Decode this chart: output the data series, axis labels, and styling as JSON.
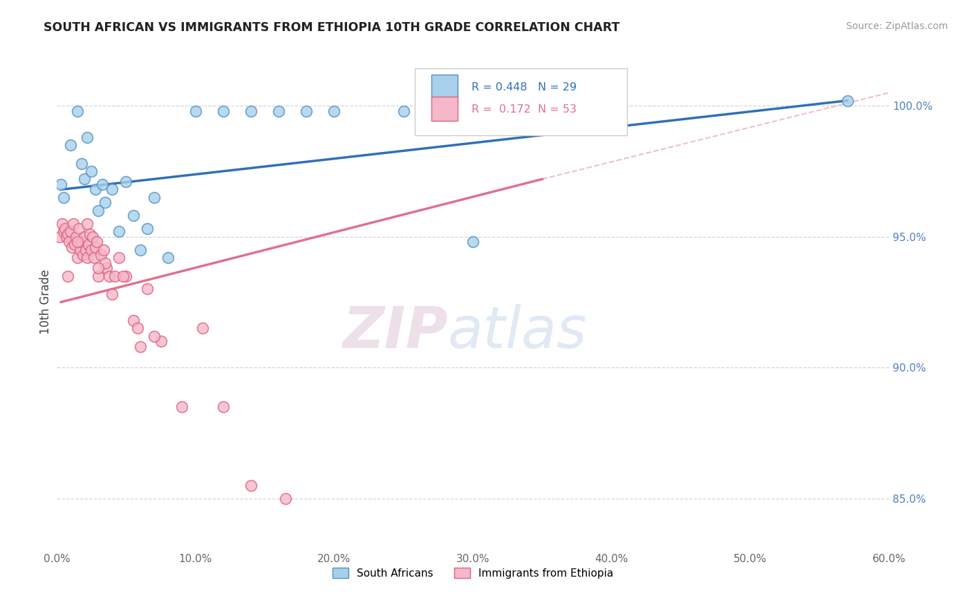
{
  "title": "SOUTH AFRICAN VS IMMIGRANTS FROM ETHIOPIA 10TH GRADE CORRELATION CHART",
  "source": "Source: ZipAtlas.com",
  "ylabel": "10th Grade",
  "x_tick_labels": [
    "0.0%",
    "10.0%",
    "20.0%",
    "30.0%",
    "40.0%",
    "50.0%",
    "60.0%"
  ],
  "x_tick_vals": [
    0.0,
    10.0,
    20.0,
    30.0,
    40.0,
    50.0,
    60.0
  ],
  "y_tick_labels": [
    "85.0%",
    "90.0%",
    "95.0%",
    "100.0%"
  ],
  "y_tick_vals": [
    85.0,
    90.0,
    95.0,
    100.0
  ],
  "xlim": [
    0.0,
    60.0
  ],
  "ylim": [
    83.0,
    102.0
  ],
  "blue_R": 0.448,
  "blue_N": 29,
  "pink_R": 0.172,
  "pink_N": 53,
  "legend_label_blue": "South Africans",
  "legend_label_pink": "Immigrants from Ethiopia",
  "blue_color": "#a8d0ea",
  "pink_color": "#f5b8c8",
  "blue_edge_color": "#5090c8",
  "pink_edge_color": "#e06080",
  "blue_line_color": "#3070b8",
  "pink_line_color": "#e07090",
  "watermark_zip": "ZIP",
  "watermark_atlas": "atlas",
  "watermark_color": "#d8e8f5",
  "blue_line_x0": 0.3,
  "blue_line_y0": 96.8,
  "blue_line_x1": 57.0,
  "blue_line_y1": 100.2,
  "pink_line_x0": 0.3,
  "pink_line_y0": 92.5,
  "pink_line_x1": 35.0,
  "pink_line_y1": 97.2,
  "pink_dash_x0": 35.0,
  "pink_dash_y0": 97.2,
  "pink_dash_x1": 60.0,
  "pink_dash_y1": 100.5,
  "blue_scatter_x": [
    0.3,
    0.5,
    1.0,
    1.5,
    2.0,
    2.2,
    2.5,
    2.8,
    3.0,
    3.3,
    3.5,
    4.0,
    4.5,
    5.0,
    5.5,
    6.0,
    6.5,
    7.0,
    8.0,
    10.0,
    12.0,
    14.0,
    16.0,
    18.0,
    20.0,
    25.0,
    30.0,
    57.0,
    1.8
  ],
  "blue_scatter_y": [
    97.0,
    96.5,
    98.5,
    99.8,
    97.2,
    98.8,
    97.5,
    96.8,
    96.0,
    97.0,
    96.3,
    96.8,
    95.2,
    97.1,
    95.8,
    94.5,
    95.3,
    96.5,
    94.2,
    99.8,
    99.8,
    99.8,
    99.8,
    99.8,
    99.8,
    99.8,
    94.8,
    100.2,
    97.8
  ],
  "pink_scatter_x": [
    0.2,
    0.4,
    0.5,
    0.6,
    0.7,
    0.8,
    0.9,
    1.0,
    1.1,
    1.2,
    1.3,
    1.4,
    1.5,
    1.6,
    1.7,
    1.8,
    1.9,
    2.0,
    2.1,
    2.2,
    2.3,
    2.4,
    2.5,
    2.6,
    2.7,
    2.8,
    2.9,
    3.0,
    3.2,
    3.4,
    3.6,
    3.8,
    4.0,
    4.2,
    4.5,
    5.0,
    5.5,
    6.5,
    7.5,
    9.0,
    10.5,
    12.0,
    14.0,
    16.5,
    4.8,
    5.8,
    3.5,
    2.2,
    1.5,
    0.8,
    6.0,
    7.0,
    3.0
  ],
  "pink_scatter_y": [
    95.0,
    95.5,
    95.2,
    95.3,
    95.0,
    95.1,
    94.8,
    95.2,
    94.6,
    95.5,
    94.7,
    95.0,
    94.2,
    95.3,
    94.5,
    94.8,
    94.3,
    95.0,
    94.5,
    94.2,
    94.7,
    95.1,
    94.5,
    95.0,
    94.2,
    94.6,
    94.8,
    93.5,
    94.3,
    94.5,
    93.8,
    93.5,
    92.8,
    93.5,
    94.2,
    93.5,
    91.8,
    93.0,
    91.0,
    88.5,
    91.5,
    88.5,
    85.5,
    85.0,
    93.5,
    91.5,
    94.0,
    95.5,
    94.8,
    93.5,
    90.8,
    91.2,
    93.8
  ]
}
